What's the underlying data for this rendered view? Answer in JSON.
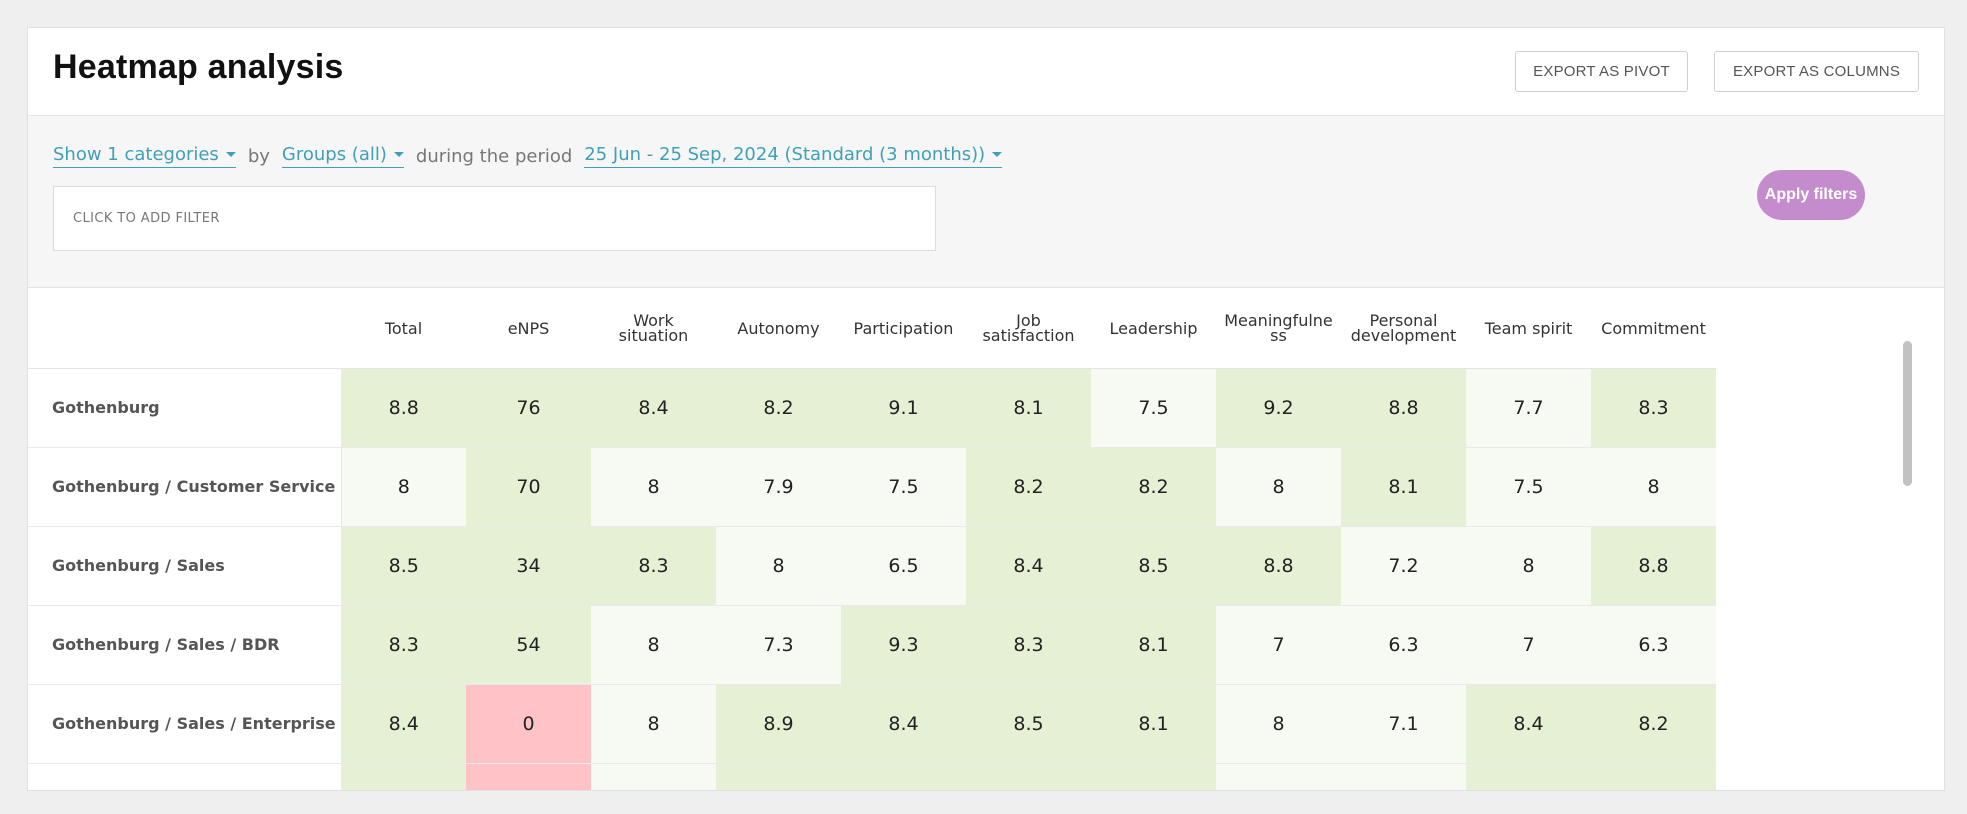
{
  "page": {
    "title": "Heatmap analysis"
  },
  "header": {
    "export_pivot": "EXPORT AS PIVOT",
    "export_columns": "EXPORT AS COLUMNS"
  },
  "filters": {
    "categories": "Show 1 categories",
    "by": "by",
    "groups": "Groups (all)",
    "period_label": "during the period",
    "period": "25 Jun - 25 Sep, 2024 (Standard (3 months))",
    "add_filter_placeholder": "CLICK TO ADD FILTER",
    "apply": "Apply filters"
  },
  "colors": {
    "accent_link": "#3fa0b8",
    "apply_button": "#c48ccd",
    "heat_high": "#e5f0d4",
    "heat_mid": "#f7faf3",
    "heat_negative": "#ffc2c6"
  },
  "table": {
    "columns": [
      "Total",
      "eNPS",
      "Work situation",
      "Autonomy",
      "Participation",
      "Job satisfaction",
      "Leadership",
      "Meaningfulness",
      "Personal development",
      "Team spirit",
      "Commitment"
    ],
    "column_lines": [
      [
        "Total"
      ],
      [
        "eNPS"
      ],
      [
        "Work",
        "situation"
      ],
      [
        "Autonomy"
      ],
      [
        "Participation"
      ],
      [
        "Job",
        "satisfaction"
      ],
      [
        "Leadership"
      ],
      [
        "Meaningfulne",
        "ss"
      ],
      [
        "Personal",
        "development"
      ],
      [
        "Team spirit"
      ],
      [
        "Commitment"
      ]
    ],
    "rows": [
      {
        "label": "Gothenburg",
        "values": [
          "8.8",
          "76",
          "8.4",
          "8.2",
          "9.1",
          "8.1",
          "7.5",
          "9.2",
          "8.8",
          "7.7",
          "8.3"
        ],
        "shade": [
          "h1",
          "h1",
          "h1",
          "h1",
          "h1",
          "h1",
          "h2",
          "h1",
          "h1",
          "h2",
          "h1"
        ]
      },
      {
        "label": "Gothenburg / Customer Service",
        "values": [
          "8",
          "70",
          "8",
          "7.9",
          "7.5",
          "8.2",
          "8.2",
          "8",
          "8.1",
          "7.5",
          "8"
        ],
        "shade": [
          "h2",
          "h1",
          "h2",
          "h2",
          "h2",
          "h1",
          "h1",
          "h2",
          "h1",
          "h2",
          "h2"
        ]
      },
      {
        "label": "Gothenburg / Sales",
        "values": [
          "8.5",
          "34",
          "8.3",
          "8",
          "6.5",
          "8.4",
          "8.5",
          "8.8",
          "7.2",
          "8",
          "8.8"
        ],
        "shade": [
          "h1",
          "h1",
          "h1",
          "h2",
          "h2",
          "h1",
          "h1",
          "h1",
          "h2",
          "h2",
          "h1"
        ]
      },
      {
        "label": "Gothenburg / Sales / BDR",
        "values": [
          "8.3",
          "54",
          "8",
          "7.3",
          "9.3",
          "8.3",
          "8.1",
          "7",
          "6.3",
          "7",
          "6.3"
        ],
        "shade": [
          "h1",
          "h1",
          "h2",
          "h2",
          "h1",
          "h1",
          "h1",
          "h2",
          "h2",
          "h2",
          "h2"
        ]
      },
      {
        "label": "Gothenburg / Sales / Enterprise",
        "values": [
          "8.4",
          "0",
          "8",
          "8.9",
          "8.4",
          "8.5",
          "8.1",
          "8",
          "7.1",
          "8.4",
          "8.2"
        ],
        "shade": [
          "h1",
          "neg",
          "h2",
          "h1",
          "h1",
          "h1",
          "h1",
          "h2",
          "h2",
          "h1",
          "h1"
        ]
      }
    ],
    "partial_row_shade": [
      "h1",
      "neg",
      "h2",
      "h1",
      "h1",
      "h1",
      "h1",
      "h2",
      "h2",
      "h1",
      "h1"
    ]
  }
}
